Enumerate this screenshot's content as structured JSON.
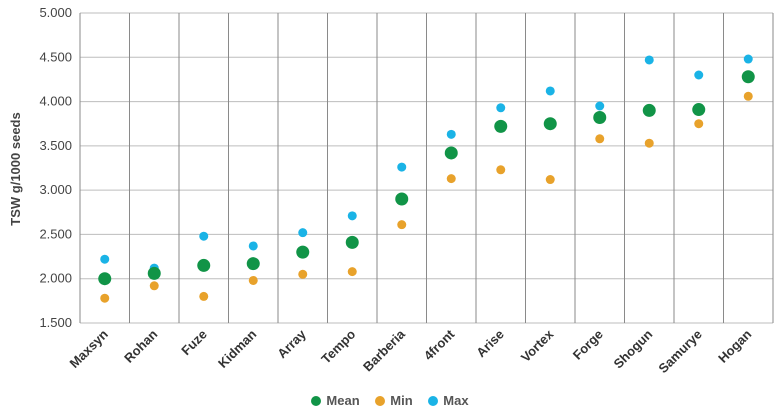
{
  "chart_data": {
    "type": "scatter",
    "categories": [
      "Maxsyn",
      "Rohan",
      "Fuze",
      "Kidman",
      "Array",
      "Tempo",
      "Barberia",
      "4front",
      "Arise",
      "Vortex",
      "Forge",
      "Shogun",
      "Samurye",
      "Hogan"
    ],
    "ylabel": "TSW g/1000 seeds",
    "ylim": [
      1.5,
      5.0
    ],
    "yticks": [
      "1.500",
      "2.000",
      "2.500",
      "3.000",
      "3.500",
      "4.000",
      "4.500",
      "5.000"
    ],
    "grid": "vertical and horizontal",
    "legend_position": "bottom",
    "series": [
      {
        "name": "Max",
        "color": "#1ab3e6",
        "values": [
          2.22,
          2.12,
          2.48,
          2.37,
          2.52,
          2.71,
          3.26,
          3.63,
          3.93,
          4.12,
          3.95,
          4.47,
          4.3,
          4.48
        ]
      },
      {
        "name": "Min",
        "color": "#e8a22b",
        "values": [
          1.78,
          1.92,
          1.8,
          1.98,
          2.05,
          2.08,
          2.61,
          3.13,
          3.23,
          3.12,
          3.58,
          3.53,
          3.75,
          4.06
        ]
      },
      {
        "name": "Mean",
        "color": "#119447",
        "values": [
          2.0,
          2.06,
          2.15,
          2.17,
          2.3,
          2.41,
          2.9,
          3.42,
          3.72,
          3.75,
          3.82,
          3.9,
          3.91,
          4.28
        ]
      }
    ]
  },
  "legend": [
    {
      "label": "Mean",
      "color": "#119447"
    },
    {
      "label": "Min",
      "color": "#e8a22b"
    },
    {
      "label": "Max",
      "color": "#1ab3e6"
    }
  ]
}
